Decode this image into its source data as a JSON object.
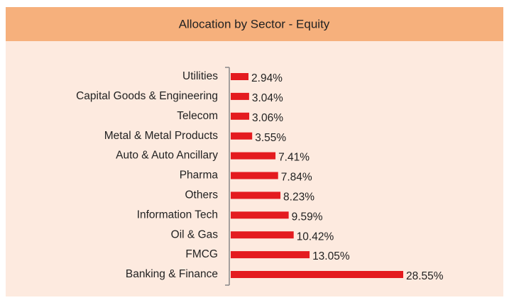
{
  "chart_data": {
    "type": "bar",
    "orientation": "horizontal",
    "title": "Allocation by Sector - Equity",
    "categories": [
      "Utilities",
      "Capital Goods & Engineering",
      "Telecom",
      "Metal & Metal Products",
      "Auto & Auto Ancillary",
      "Pharma",
      "Others",
      "Information Tech",
      "Oil & Gas",
      "FMCG",
      "Banking & Finance"
    ],
    "values": [
      2.94,
      3.04,
      3.06,
      3.55,
      7.41,
      7.84,
      8.23,
      9.59,
      10.42,
      13.05,
      28.55
    ],
    "value_labels": [
      "2.94%",
      "3.04%",
      "3.06%",
      "3.55%",
      "7.41%",
      "7.84%",
      "8.23%",
      "9.59%",
      "10.42%",
      "13.05%",
      "28.55%"
    ],
    "color": "#e41b1f"
  }
}
